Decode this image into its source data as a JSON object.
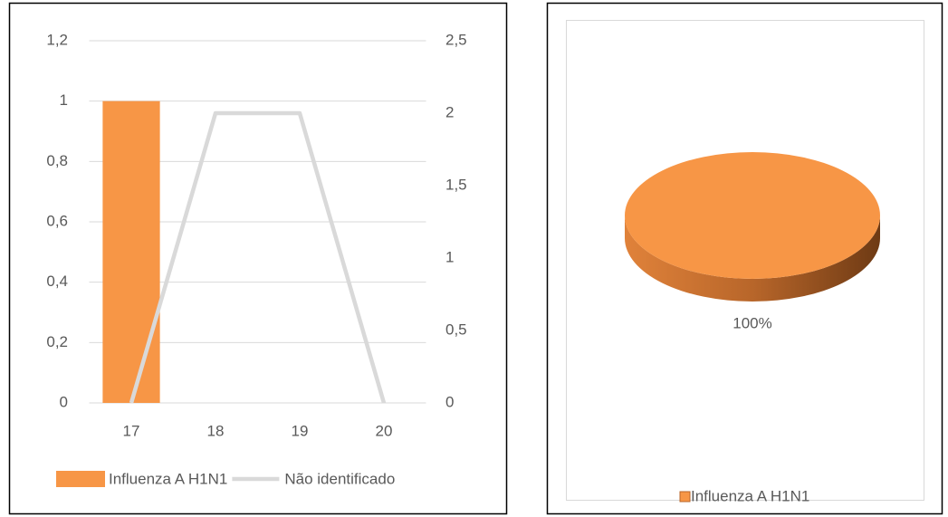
{
  "chart_data": [
    {
      "type": "bar-line",
      "categories": [
        "17",
        "18",
        "19",
        "20"
      ],
      "series": [
        {
          "name": "Influenza A H1N1",
          "type": "bar",
          "color": "#f79646",
          "values": [
            1,
            0,
            0,
            0
          ]
        },
        {
          "name": "Não identificado",
          "type": "line",
          "color": "#d9d9d9",
          "axis": "y2",
          "values": [
            0,
            2,
            2,
            0
          ]
        }
      ],
      "ylim": [
        0,
        1.2
      ],
      "yticks": [
        0,
        {
          "value": 0.2,
          "label": "0,2"
        },
        {
          "value": 0.4,
          "label": "0,4"
        },
        {
          "value": 0.6,
          "label": "0,6"
        },
        {
          "value": 0.8,
          "label": "0,8"
        },
        1,
        {
          "value": 1.2,
          "label": "1,2"
        }
      ],
      "y2lim": [
        0,
        2.5
      ],
      "y2ticks": [
        0,
        {
          "value": 0.5,
          "label": "0,5"
        },
        1,
        {
          "value": 1.5,
          "label": "1,5"
        },
        2,
        {
          "value": 2.5,
          "label": "2,5"
        }
      ],
      "grid": true,
      "legend": "bottom"
    },
    {
      "type": "pie",
      "categories": [
        "Influenza A H1N1"
      ],
      "values": [
        100
      ],
      "value_labels": [
        "100%"
      ],
      "colors": [
        "#f79646"
      ],
      "legend": "bottom"
    }
  ]
}
